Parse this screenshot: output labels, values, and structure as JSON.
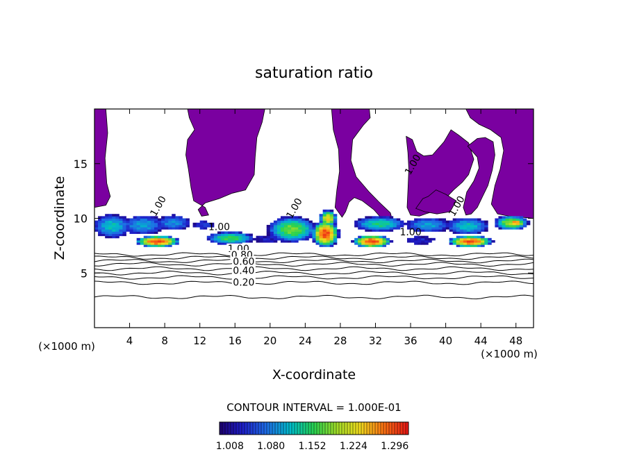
{
  "chart_data": {
    "type": "heatmap",
    "title": "saturation ratio",
    "xlabel": "X-coordinate",
    "ylabel": "Z-coordinate",
    "x_unit": "(×1000 m)",
    "y_unit": "(×1000 m)",
    "xlim": [
      0,
      50
    ],
    "ylim": [
      0,
      20
    ],
    "x_ticks": [
      4,
      8,
      12,
      16,
      20,
      24,
      28,
      32,
      36,
      40,
      44,
      48
    ],
    "y_ticks": [
      5,
      10,
      15
    ],
    "contour_interval_label": "CONTOUR INTERVAL = 1.000E-01",
    "colorbar": {
      "labels": [
        "1.008",
        "1.080",
        "1.152",
        "1.224",
        "1.296"
      ],
      "values": [
        1.008,
        1.08,
        1.152,
        1.224,
        1.296
      ],
      "range": [
        0.99,
        1.32
      ]
    },
    "contour_labels": [
      {
        "text": "1.00",
        "x": 7.5,
        "z": 11.0
      },
      {
        "text": "1.00",
        "x": 23.0,
        "z": 10.8
      },
      {
        "text": "1.00",
        "x": 36.5,
        "z": 14.8
      },
      {
        "text": "1.00",
        "x": 41.5,
        "z": 11.0
      },
      {
        "text": "1.00",
        "x": 14.2,
        "z": 9.0
      },
      {
        "text": "1.00",
        "x": 36.0,
        "z": 8.5
      },
      {
        "text": "1.00",
        "x": 16.4,
        "z": 7.0
      },
      {
        "text": "0.80",
        "x": 16.8,
        "z": 6.4
      },
      {
        "text": "0.60",
        "x": 17.0,
        "z": 5.8
      },
      {
        "text": "0.40",
        "x": 17.0,
        "z": 5.0
      },
      {
        "text": "0.20",
        "x": 17.0,
        "z": 3.9
      }
    ],
    "contour_levels_z": [
      2.8,
      4.1,
      4.6,
      5.0,
      5.4,
      5.8,
      6.1,
      6.4,
      6.7
    ],
    "colors": {
      "supersaturated_region": "#7a00a0",
      "contour_line": "#000000"
    }
  }
}
